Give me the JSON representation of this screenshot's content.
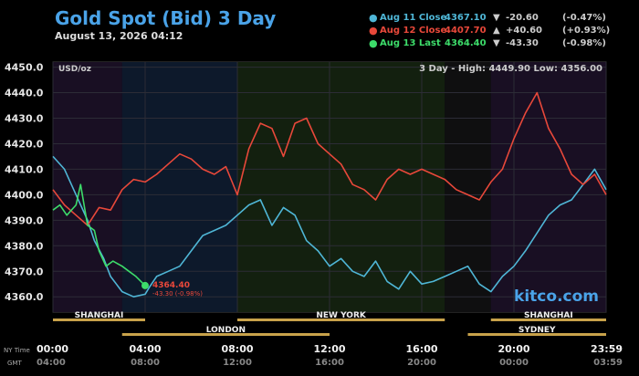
{
  "header": {
    "title": "Gold Spot (Bid) 3 Day",
    "date": "August 13, 2026 04:12"
  },
  "legend": [
    {
      "label": "Aug 11 Close",
      "value": "4367.10",
      "arrow": "▼",
      "change": "-20.60",
      "percent": "(-0.47%)",
      "color": "#4fb6d6"
    },
    {
      "label": "Aug 12 Close",
      "value": "4407.70",
      "arrow": "▲",
      "change": "+40.60",
      "percent": "(+0.93%)",
      "color": "#e8483a"
    },
    {
      "label": "Aug 13 Last",
      "value": "4364.40",
      "arrow": "▼",
      "change": "-43.30",
      "percent": "(-0.98%)",
      "color": "#3ddc6a"
    }
  ],
  "chart_labels": {
    "unit": "USD/oz",
    "range": "3 Day - High: 4449.90  Low: 4356.00",
    "brand": "kitco.com",
    "last_marker": "4364.40",
    "last_change": "-43.30 (-0.98%)",
    "ny_time_label": "NY Time",
    "gmt_label": "GMT"
  },
  "sessions": [
    {
      "name": "SHANGHAI",
      "start": 0,
      "end": 4,
      "row": 1
    },
    {
      "name": "LONDON",
      "start": 3,
      "end": 12,
      "row": 2
    },
    {
      "name": "NEW YORK",
      "start": 8,
      "end": 17,
      "row": 1
    },
    {
      "name": "SHANGHAI",
      "start": 19,
      "end": 24,
      "row": 1
    },
    {
      "name": "SYDNEY",
      "start": 18,
      "end": 24,
      "row": 2
    }
  ],
  "chart_data": {
    "type": "line",
    "xlim": [
      0,
      24
    ],
    "ylim": [
      4354,
      4452
    ],
    "y_ticks": [
      4360,
      4370,
      4380,
      4390,
      4400,
      4410,
      4420,
      4430,
      4440,
      4450
    ],
    "y_tick_labels": [
      "4360.0",
      "4370.0",
      "4380.0",
      "4390.0",
      "4400.0",
      "4410.0",
      "4420.0",
      "4430.0",
      "4440.0",
      "4450.0"
    ],
    "x_ticks": [
      0,
      4,
      8,
      12,
      16,
      20,
      24
    ],
    "x_tick_labels_ny": [
      "00:00",
      "04:00",
      "08:00",
      "12:00",
      "16:00",
      "20:00",
      "23:59"
    ],
    "x_tick_labels_gmt": [
      "04:00",
      "08:00",
      "12:00",
      "16:00",
      "20:00",
      "00:00",
      "03:59"
    ],
    "series": [
      {
        "name": "Aug 11 Close",
        "color": "#4fb6d6",
        "x": [
          0,
          0.5,
          1,
          1.5,
          1.8,
          2.2,
          2.5,
          3,
          3.5,
          4,
          4.2,
          4.5,
          5,
          5.5,
          6,
          6.5,
          7,
          7.5,
          8,
          8.5,
          9,
          9.5,
          10,
          10.5,
          11,
          11.5,
          12,
          12.5,
          13,
          13.5,
          14,
          14.5,
          15,
          15.5,
          16,
          16.5,
          17,
          17.5,
          18,
          18.5,
          19,
          19.5,
          20,
          20.5,
          21,
          21.5,
          22,
          22.5,
          23,
          23.5,
          24
        ],
        "y": [
          4415,
          4410,
          4400,
          4390,
          4382,
          4375,
          4368,
          4362,
          4360,
          4361,
          4364,
          4368,
          4370,
          4372,
          4378,
          4384,
          4386,
          4388,
          4392,
          4396,
          4398,
          4388,
          4395,
          4392,
          4382,
          4378,
          4372,
          4375,
          4370,
          4368,
          4374,
          4366,
          4363,
          4370,
          4365,
          4366,
          4368,
          4370,
          4372,
          4365,
          4362,
          4368,
          4372,
          4378,
          4385,
          4392,
          4396,
          4398,
          4404,
          4410,
          4402
        ]
      },
      {
        "name": "Aug 12 Close",
        "color": "#e8483a",
        "x": [
          0,
          0.5,
          1,
          1.5,
          2,
          2.5,
          3,
          3.5,
          4,
          4.5,
          5,
          5.5,
          6,
          6.5,
          7,
          7.5,
          8,
          8.5,
          9,
          9.5,
          10,
          10.5,
          11,
          11.5,
          12,
          12.5,
          13,
          13.5,
          14,
          14.5,
          15,
          15.5,
          16,
          16.5,
          17,
          17.5,
          18,
          18.5,
          19,
          19.5,
          20,
          20.5,
          21,
          21.5,
          22,
          22.5,
          23,
          23.5,
          24
        ],
        "y": [
          4402,
          4396,
          4392,
          4388,
          4395,
          4394,
          4402,
          4406,
          4405,
          4408,
          4412,
          4416,
          4414,
          4410,
          4408,
          4411,
          4400,
          4418,
          4428,
          4426,
          4415,
          4428,
          4430,
          4420,
          4416,
          4412,
          4404,
          4402,
          4398,
          4406,
          4410,
          4408,
          4410,
          4408,
          4406,
          4402,
          4400,
          4398,
          4405,
          4410,
          4422,
          4432,
          4440,
          4426,
          4418,
          4408,
          4404,
          4408,
          4400
        ]
      },
      {
        "name": "Aug 13 Last",
        "color": "#3ddc6a",
        "x": [
          0,
          0.3,
          0.6,
          1,
          1.2,
          1.5,
          1.8,
          2,
          2.3,
          2.6,
          3,
          3.3,
          3.6,
          4
        ],
        "y": [
          4394,
          4396,
          4392,
          4396,
          4404,
          4388,
          4386,
          4378,
          4372,
          4374,
          4372,
          4370,
          4368,
          4364.4
        ]
      }
    ],
    "last_point": {
      "x": 4,
      "y": 4364.4
    }
  }
}
